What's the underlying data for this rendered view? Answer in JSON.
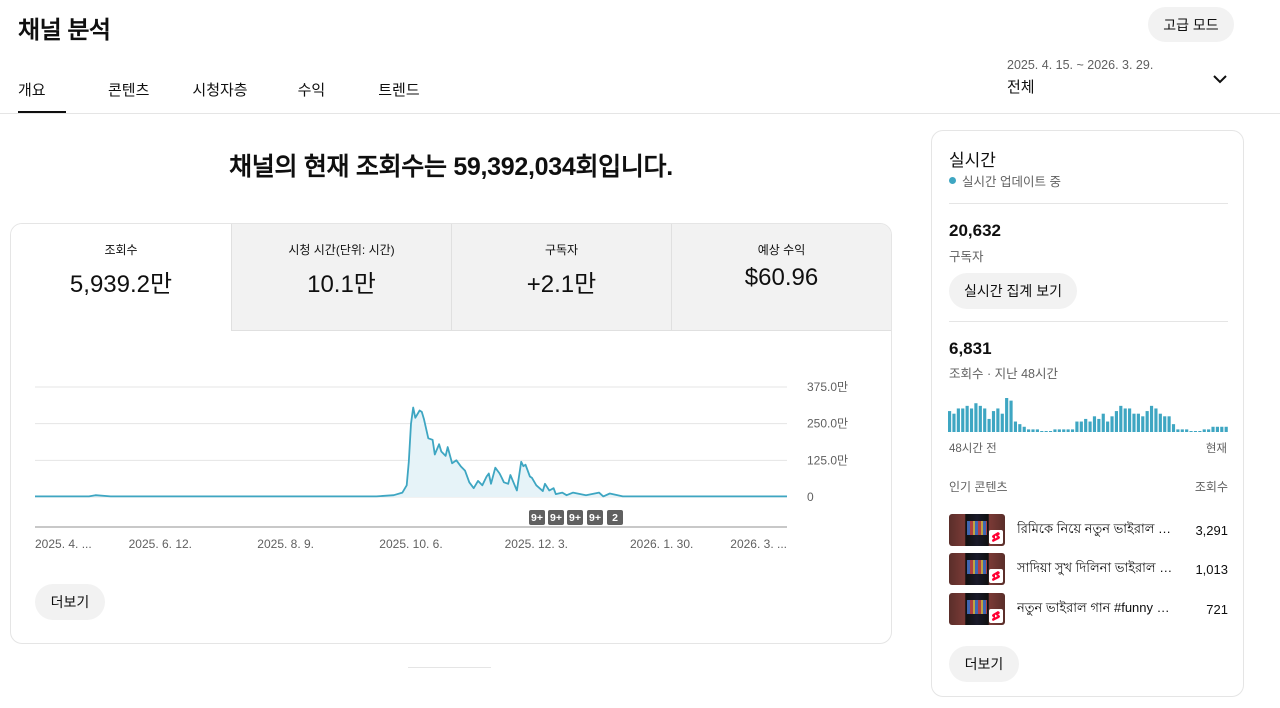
{
  "header": {
    "title": "채널 분석",
    "advanced_mode_label": "고급 모드",
    "date_range": "2025. 4. 15. ~ 2026. 3. 29.",
    "date_label": "전체"
  },
  "tabs": [
    {
      "label": "개요",
      "active": true
    },
    {
      "label": "콘텐츠",
      "active": false
    },
    {
      "label": "시청자층",
      "active": false
    },
    {
      "label": "수익",
      "active": false
    },
    {
      "label": "트렌드",
      "active": false
    }
  ],
  "headline": "채널의 현재 조회수는 59,392,034회입니다.",
  "metrics": [
    {
      "label": "조회수",
      "value": "5,939.2만"
    },
    {
      "label": "시청 시간(단위: 시간)",
      "value": "10.1만"
    },
    {
      "label": "구독자",
      "value": "+2.1만"
    },
    {
      "label": "예상 수익",
      "value": "$60.96"
    }
  ],
  "main_more_label": "더보기",
  "chart_data": {
    "type": "area",
    "x_tick_labels": [
      "2025. 4. ...",
      "2025. 6. 12.",
      "2025. 8. 9.",
      "2025. 10. 6.",
      "2025. 12. 3.",
      "2026. 1. 30.",
      "2026. 3. ..."
    ],
    "x_tick_dates": [
      "2025-04-15",
      "2025-06-12",
      "2025-08-09",
      "2025-10-06",
      "2025-12-03",
      "2026-01-30",
      "2026-03-29"
    ],
    "y_tick_labels": [
      "375.0만",
      "250.0만",
      "125.0만",
      "0"
    ],
    "y_ticks": [
      3750000,
      2500000,
      1250000,
      0
    ],
    "ylim": [
      0,
      3750000
    ],
    "grid": true,
    "line_color": "#3ea6c2",
    "fill_color": "#e6f3f8",
    "series": [
      {
        "x": [
          "2025-04-15",
          "2025-05-10",
          "2025-05-13",
          "2025-05-20",
          "2025-06-01",
          "2025-07-10",
          "2025-08-20",
          "2025-09-10",
          "2025-09-20",
          "2025-09-28",
          "2025-10-02",
          "2025-10-04",
          "2025-10-05",
          "2025-10-06",
          "2025-10-07",
          "2025-10-08",
          "2025-10-10",
          "2025-10-11",
          "2025-10-12",
          "2025-10-14",
          "2025-10-16",
          "2025-10-17",
          "2025-10-19",
          "2025-10-20",
          "2025-10-22",
          "2025-10-23",
          "2025-10-25",
          "2025-10-27",
          "2025-10-29",
          "2025-10-31",
          "2025-11-02",
          "2025-11-04",
          "2025-11-06",
          "2025-11-08",
          "2025-11-10",
          "2025-11-11",
          "2025-11-12",
          "2025-11-14",
          "2025-11-16",
          "2025-11-17",
          "2025-11-18",
          "2025-11-20",
          "2025-11-21",
          "2025-11-23",
          "2025-11-24",
          "2025-11-26",
          "2025-11-27",
          "2025-11-28",
          "2025-11-30",
          "2025-12-01",
          "2025-12-03",
          "2025-12-06",
          "2025-12-07",
          "2025-12-09",
          "2025-12-11",
          "2025-12-12",
          "2025-12-15",
          "2025-12-17",
          "2025-12-20",
          "2025-12-26",
          "2026-01-01",
          "2026-01-03",
          "2026-01-06",
          "2026-01-12",
          "2026-03-29"
        ],
        "y": [
          20000,
          20000,
          60000,
          20000,
          20000,
          20000,
          20000,
          20000,
          20000,
          60000,
          150000,
          400000,
          1200000,
          2500000,
          3050000,
          2700000,
          2950000,
          2900000,
          2650000,
          2000000,
          1950000,
          1450000,
          1800000,
          1550000,
          1400000,
          1700000,
          1150000,
          1250000,
          1050000,
          900000,
          500000,
          300000,
          550000,
          400000,
          700000,
          800000,
          450000,
          1000000,
          800000,
          650000,
          500000,
          450000,
          750000,
          400000,
          220000,
          1200000,
          1050000,
          1100000,
          700000,
          650000,
          400000,
          200000,
          450000,
          220000,
          300000,
          100000,
          150000,
          60000,
          150000,
          60000,
          150000,
          20000,
          120000,
          20000,
          20000
        ]
      }
    ],
    "annotations": [
      "9+",
      "9+",
      "9+",
      "9+",
      "2"
    ]
  },
  "realtime": {
    "title": "실시간",
    "status": "실시간 업데이트 중",
    "subscribers_value": "20,632",
    "subscribers_label": "구독자",
    "view_btn_label": "실시간 집계 보기",
    "views_value": "6,831",
    "views_label": "조회수 · 지난 48시간",
    "axis_left": "48시간 전",
    "axis_right": "현재",
    "bar_color": "#3ea6c2",
    "hourly_views": [
      8,
      7,
      9,
      9,
      10,
      9,
      11,
      10,
      9,
      5,
      8,
      9,
      7,
      13,
      12,
      4,
      3,
      2,
      1,
      1,
      1,
      0,
      0,
      0,
      1,
      1,
      1,
      1,
      1,
      4,
      4,
      5,
      4,
      6,
      5,
      7,
      4,
      6,
      8,
      10,
      9,
      9,
      7,
      7,
      6,
      8,
      10,
      9,
      7,
      6,
      6,
      3,
      1,
      1,
      1,
      0,
      0,
      0,
      1,
      1,
      2,
      2,
      2,
      2
    ]
  },
  "popular": {
    "header_label": "인기 콘텐츠",
    "header_value": "조회수",
    "items": [
      {
        "title": "রিমিকে নিয়ে নতুন ভাইরাল গান #funny #fun",
        "views": "3,291"
      },
      {
        "title": "সাদিয়া সুখ দিলিনা ভাইরাল গান #funny",
        "views": "1,013"
      },
      {
        "title": "নতুন ভাইরাল গান #funny #fun #shorts",
        "views": "721"
      }
    ],
    "more_label": "더보기"
  }
}
